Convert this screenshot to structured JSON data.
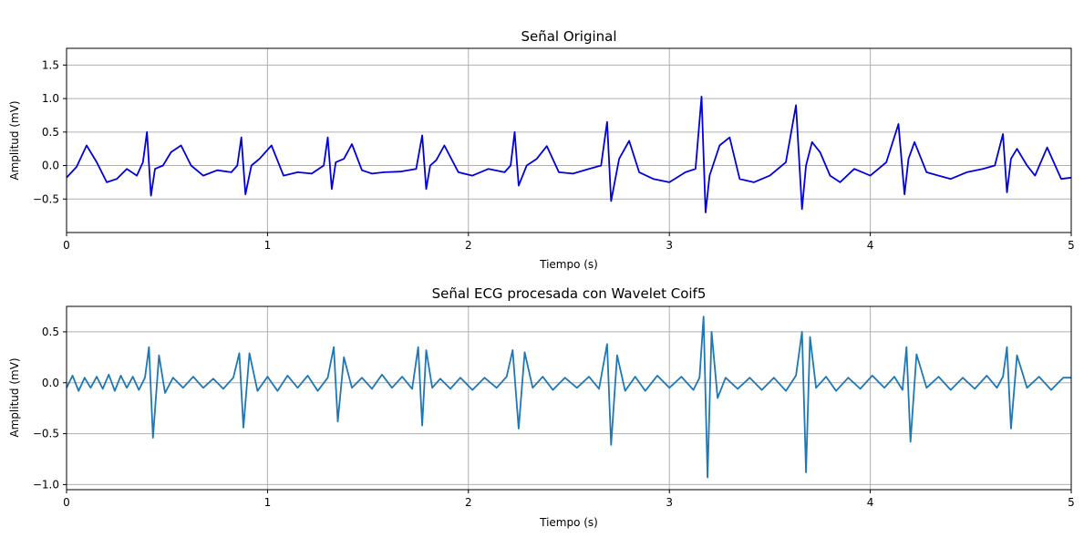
{
  "chart_data": [
    {
      "type": "line",
      "title": "Señal Original",
      "xlabel": "Tiempo (s)",
      "ylabel": "Amplitud (mV)",
      "xlim": [
        0,
        5
      ],
      "ylim": [
        -1.0,
        1.75
      ],
      "xticks": [
        "0",
        "1",
        "2",
        "3",
        "4",
        "5"
      ],
      "yticks": [
        "−0.5",
        "0.0",
        "0.5",
        "1.0",
        "1.5"
      ],
      "ytick_values": [
        -0.5,
        0.0,
        0.5,
        1.0,
        1.5
      ],
      "grid": true,
      "color": "#0000dd",
      "series": [
        {
          "x": [
            0.0,
            0.05,
            0.1,
            0.15,
            0.2,
            0.25,
            0.3,
            0.35,
            0.38,
            0.4,
            0.42,
            0.44,
            0.48,
            0.52,
            0.57,
            0.62,
            0.68,
            0.75,
            0.82,
            0.85,
            0.87,
            0.89,
            0.92,
            0.96,
            1.02,
            1.08,
            1.15,
            1.22,
            1.28,
            1.3,
            1.32,
            1.34,
            1.38,
            1.42,
            1.47,
            1.52,
            1.58,
            1.66,
            1.74,
            1.77,
            1.79,
            1.81,
            1.84,
            1.88,
            1.95,
            2.02,
            2.1,
            2.18,
            2.21,
            2.23,
            2.25,
            2.29,
            2.34,
            2.39,
            2.45,
            2.52,
            2.6,
            2.66,
            2.69,
            2.71,
            2.75,
            2.8,
            2.85,
            2.92,
            3.0,
            3.08,
            3.13,
            3.16,
            3.18,
            3.2,
            3.25,
            3.3,
            3.35,
            3.42,
            3.5,
            3.58,
            3.63,
            3.66,
            3.68,
            3.71,
            3.75,
            3.8,
            3.85,
            3.92,
            4.0,
            4.08,
            4.14,
            4.17,
            4.19,
            4.22,
            4.28,
            4.34,
            4.4,
            4.48,
            4.56,
            4.62,
            4.66,
            4.68,
            4.7,
            4.73,
            4.78,
            4.82,
            4.88,
            4.95,
            5.0
          ],
          "y": [
            -0.18,
            -0.02,
            0.3,
            0.05,
            -0.25,
            -0.2,
            -0.05,
            -0.15,
            0.05,
            0.5,
            -0.45,
            -0.05,
            0.0,
            0.2,
            0.3,
            0.0,
            -0.15,
            -0.07,
            -0.1,
            0.0,
            0.42,
            -0.43,
            0.0,
            0.1,
            0.3,
            -0.15,
            -0.1,
            -0.12,
            0.0,
            0.42,
            -0.35,
            0.05,
            0.1,
            0.32,
            -0.07,
            -0.12,
            -0.1,
            -0.09,
            -0.05,
            0.45,
            -0.35,
            0.0,
            0.08,
            0.3,
            -0.1,
            -0.15,
            -0.05,
            -0.1,
            0.0,
            0.5,
            -0.3,
            0.0,
            0.1,
            0.29,
            -0.1,
            -0.12,
            -0.05,
            0.0,
            0.65,
            -0.53,
            0.1,
            0.37,
            -0.1,
            -0.2,
            -0.25,
            -0.1,
            -0.05,
            1.03,
            -0.7,
            -0.15,
            0.3,
            0.42,
            -0.2,
            -0.25,
            -0.15,
            0.05,
            0.9,
            -0.65,
            0.0,
            0.35,
            0.2,
            -0.15,
            -0.25,
            -0.05,
            -0.15,
            0.05,
            0.62,
            -0.43,
            0.1,
            0.35,
            -0.1,
            -0.15,
            -0.2,
            -0.1,
            -0.05,
            0.0,
            0.47,
            -0.4,
            0.1,
            0.25,
            0.0,
            -0.15,
            0.27,
            -0.2,
            -0.18
          ]
        }
      ]
    },
    {
      "type": "line",
      "title": "Señal ECG procesada con Wavelet Coif5",
      "xlabel": "Tiempo (s)",
      "ylabel": "Amplitud (mV)",
      "xlim": [
        0,
        5
      ],
      "ylim": [
        -1.05,
        0.75
      ],
      "xticks": [
        "0",
        "1",
        "2",
        "3",
        "4",
        "5"
      ],
      "yticks": [
        "−1.0",
        "−0.5",
        "0.0",
        "0.5"
      ],
      "ytick_values": [
        -1.0,
        -0.5,
        0.0,
        0.5
      ],
      "grid": true,
      "color": "#1f77b4",
      "series": [
        {
          "x": [
            0.0,
            0.03,
            0.06,
            0.09,
            0.12,
            0.15,
            0.18,
            0.21,
            0.24,
            0.27,
            0.3,
            0.33,
            0.36,
            0.39,
            0.41,
            0.43,
            0.46,
            0.49,
            0.53,
            0.58,
            0.63,
            0.68,
            0.73,
            0.78,
            0.83,
            0.86,
            0.88,
            0.91,
            0.95,
            1.0,
            1.05,
            1.1,
            1.15,
            1.2,
            1.25,
            1.3,
            1.33,
            1.35,
            1.38,
            1.42,
            1.47,
            1.52,
            1.57,
            1.62,
            1.67,
            1.72,
            1.75,
            1.77,
            1.79,
            1.82,
            1.86,
            1.91,
            1.96,
            2.02,
            2.08,
            2.14,
            2.19,
            2.22,
            2.25,
            2.28,
            2.32,
            2.37,
            2.42,
            2.48,
            2.54,
            2.6,
            2.65,
            2.69,
            2.71,
            2.74,
            2.78,
            2.83,
            2.88,
            2.94,
            3.0,
            3.06,
            3.12,
            3.15,
            3.17,
            3.19,
            3.21,
            3.24,
            3.28,
            3.34,
            3.4,
            3.46,
            3.52,
            3.58,
            3.63,
            3.66,
            3.68,
            3.7,
            3.73,
            3.78,
            3.83,
            3.89,
            3.95,
            4.01,
            4.07,
            4.12,
            4.16,
            4.18,
            4.2,
            4.23,
            4.28,
            4.34,
            4.4,
            4.46,
            4.52,
            4.58,
            4.63,
            4.66,
            4.68,
            4.7,
            4.73,
            4.78,
            4.84,
            4.9,
            4.96,
            5.0
          ],
          "y": [
            -0.05,
            0.07,
            -0.08,
            0.05,
            -0.05,
            0.06,
            -0.06,
            0.08,
            -0.08,
            0.07,
            -0.05,
            0.06,
            -0.07,
            0.05,
            0.35,
            -0.54,
            0.27,
            -0.1,
            0.05,
            -0.05,
            0.06,
            -0.05,
            0.04,
            -0.06,
            0.05,
            0.29,
            -0.44,
            0.29,
            -0.08,
            0.06,
            -0.08,
            0.07,
            -0.05,
            0.07,
            -0.08,
            0.05,
            0.35,
            -0.38,
            0.25,
            -0.05,
            0.05,
            -0.06,
            0.08,
            -0.05,
            0.06,
            -0.06,
            0.35,
            -0.42,
            0.32,
            -0.05,
            0.04,
            -0.06,
            0.05,
            -0.07,
            0.05,
            -0.05,
            0.06,
            0.32,
            -0.45,
            0.3,
            -0.05,
            0.06,
            -0.07,
            0.05,
            -0.05,
            0.06,
            -0.06,
            0.38,
            -0.61,
            0.27,
            -0.08,
            0.06,
            -0.08,
            0.07,
            -0.05,
            0.06,
            -0.07,
            0.05,
            0.65,
            -0.93,
            0.5,
            -0.15,
            0.05,
            -0.06,
            0.05,
            -0.07,
            0.05,
            -0.08,
            0.07,
            0.5,
            -0.88,
            0.45,
            -0.05,
            0.06,
            -0.08,
            0.05,
            -0.06,
            0.07,
            -0.05,
            0.06,
            -0.07,
            0.35,
            -0.58,
            0.28,
            -0.05,
            0.06,
            -0.07,
            0.05,
            -0.06,
            0.07,
            -0.05,
            0.06,
            0.35,
            -0.45,
            0.27,
            -0.05,
            0.06,
            -0.07,
            0.05,
            0.05
          ]
        }
      ]
    }
  ]
}
